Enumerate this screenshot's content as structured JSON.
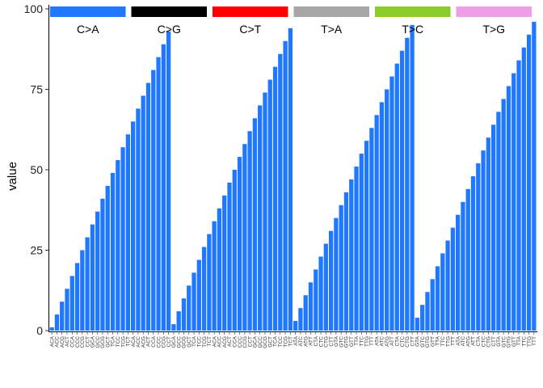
{
  "chart_data": {
    "type": "bar",
    "ylabel": "value",
    "xlabel": "",
    "ylim": [
      0,
      100
    ],
    "yticks": [
      0,
      25,
      50,
      75,
      100
    ],
    "bar_color": "#1f78ff",
    "groups": [
      {
        "label": "C>A",
        "color": "#1f78ff"
      },
      {
        "label": "C>G",
        "color": "#000000"
      },
      {
        "label": "C>T",
        "color": "#ff0000"
      },
      {
        "label": "T>A",
        "color": "#a6a6a6"
      },
      {
        "label": "T>C",
        "color": "#8ccc2a"
      },
      {
        "label": "T>G",
        "color": "#ee9ee6"
      }
    ],
    "categories": [
      "ACA",
      "ACC",
      "ACG",
      "ACT",
      "CCA",
      "CCC",
      "CCG",
      "CCT",
      "GCA",
      "GCC",
      "GCG",
      "GCT",
      "TCA",
      "TCC",
      "TCG",
      "TCT",
      "ACA",
      "ACC",
      "ACG",
      "ACT",
      "CCA",
      "CCC",
      "CCG",
      "CCT",
      "GCA",
      "GCC",
      "GCG",
      "GCT",
      "TCA",
      "TCC",
      "TCG",
      "TCT",
      "ACA",
      "ACC",
      "ACG",
      "ACT",
      "CCA",
      "CCC",
      "CCG",
      "CCT",
      "GCA",
      "GCC",
      "GCG",
      "GCT",
      "TCA",
      "TCC",
      "TCG",
      "TCT",
      "ATA",
      "ATC",
      "ATG",
      "ATT",
      "CTA",
      "CTC",
      "CTG",
      "CTT",
      "GTA",
      "GTC",
      "GTG",
      "GTT",
      "TTA",
      "TTC",
      "TTG",
      "TTT",
      "ATA",
      "ATC",
      "ATG",
      "ATT",
      "CTA",
      "CTC",
      "CTG",
      "CTT",
      "GTA",
      "GTC",
      "GTG",
      "GTT",
      "TTA",
      "TTC",
      "TTG",
      "TTT",
      "ATA",
      "ATC",
      "ATG",
      "ATT",
      "CTA",
      "CTC",
      "CTG",
      "CTT",
      "GTA",
      "GTC",
      "GTG",
      "GTT",
      "TTA",
      "TTC",
      "TTG",
      "TTT"
    ],
    "values": [
      1,
      5,
      9,
      13,
      17,
      21,
      25,
      29,
      33,
      37,
      41,
      45,
      49,
      53,
      57,
      61,
      65,
      69,
      73,
      77,
      81,
      85,
      89,
      93,
      2,
      6,
      10,
      14,
      18,
      22,
      26,
      30,
      34,
      38,
      42,
      46,
      50,
      54,
      58,
      62,
      66,
      70,
      74,
      78,
      82,
      86,
      90,
      94,
      3,
      7,
      11,
      15,
      19,
      23,
      27,
      31,
      35,
      39,
      43,
      47,
      51,
      55,
      59,
      63,
      67,
      71,
      75,
      79,
      83,
      87,
      91,
      95,
      4,
      8,
      12,
      16,
      20,
      24,
      28,
      32,
      36,
      40,
      44,
      48,
      52,
      56,
      60,
      64,
      68,
      72,
      76,
      80,
      84,
      88,
      92,
      96
    ]
  }
}
